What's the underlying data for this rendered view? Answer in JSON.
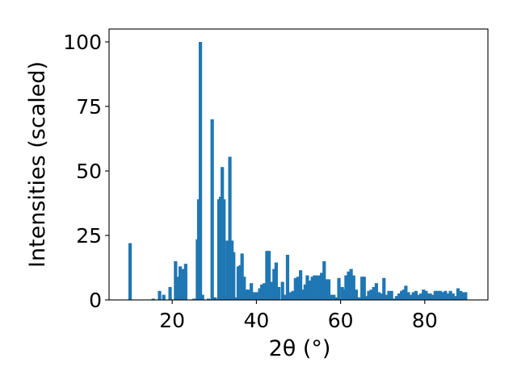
{
  "chart_data": {
    "type": "bar",
    "title": "",
    "xlabel": "2θ (°)",
    "ylabel": "Intensities (scaled)",
    "xlim": [
      5.0,
      95.0
    ],
    "ylim": [
      0,
      105
    ],
    "x_ticks": [
      20,
      40,
      60,
      80
    ],
    "y_ticks": [
      0,
      25,
      50,
      75,
      100
    ],
    "bar_color": "#1f77b4",
    "grid": false,
    "x": [
      10.0,
      15.5,
      17.0,
      18.0,
      19.5,
      20.8,
      21.3,
      21.9,
      22.5,
      23.2,
      25.2,
      26.0,
      26.3,
      26.7,
      27.2,
      28.6,
      29.5,
      30.2,
      31.1,
      31.5,
      31.9,
      32.3,
      32.7,
      33.1,
      33.7,
      34.2,
      34.6,
      35.2,
      35.7,
      36.2,
      36.6,
      37.1,
      37.6,
      38.1,
      38.8,
      39.3,
      40.0,
      40.8,
      41.3,
      41.9,
      42.5,
      43.0,
      43.6,
      44.2,
      44.7,
      45.3,
      46.2,
      46.9,
      47.4,
      48.1,
      48.7,
      49.3,
      49.9,
      50.5,
      51.0,
      51.6,
      52.1,
      52.7,
      53.3,
      53.8,
      54.3,
      54.9,
      55.5,
      56.1,
      56.6,
      57.2,
      57.8,
      58.4,
      59.0,
      59.6,
      60.4,
      60.9,
      61.3,
      61.9,
      62.5,
      63.1,
      63.7,
      64.5,
      65.1,
      65.6,
      66.2,
      66.7,
      67.3,
      67.9,
      68.5,
      69.1,
      69.7,
      70.3,
      70.9,
      71.5,
      72.1,
      72.7,
      73.3,
      73.9,
      74.5,
      75.0,
      75.5,
      76.1,
      76.7,
      77.3,
      77.9,
      78.5,
      79.1,
      79.7,
      80.3,
      80.8,
      81.3,
      81.9,
      82.5,
      83.1,
      83.7,
      84.3,
      84.9,
      85.5,
      86.1,
      86.7,
      87.3,
      87.9,
      88.5,
      89.1,
      89.7
    ],
    "values": [
      22,
      0.5,
      3.5,
      2,
      5,
      15,
      9,
      13,
      12,
      14,
      0.5,
      23.5,
      39,
      100,
      2,
      0.5,
      70,
      1,
      39,
      40,
      51.5,
      39,
      2,
      23,
      55.5,
      23,
      18.5,
      1,
      13,
      13.5,
      18,
      9,
      4,
      4,
      6.5,
      3,
      3,
      4.5,
      6,
      6.5,
      19,
      19,
      7,
      12,
      14.5,
      5,
      7,
      2,
      17.5,
      3,
      3.5,
      8.5,
      9,
      11.5,
      4,
      6,
      9.5,
      7.5,
      9,
      9.5,
      9.5,
      9.5,
      10.5,
      15,
      8,
      8,
      2,
      2,
      1,
      8.5,
      5,
      4,
      9.5,
      11,
      12,
      9.5,
      4,
      1,
      9,
      9,
      1.5,
      3.5,
      4,
      5,
      6.5,
      3,
      2.5,
      8.5,
      2,
      3.5,
      3.5,
      0.5,
      1.5,
      2.5,
      3.5,
      4,
      5.5,
      3,
      2,
      3,
      3.5,
      2,
      2.5,
      4,
      3.5,
      2.5,
      2.5,
      2,
      3.5,
      3.5,
      3.5,
      3,
      3.5,
      2.5,
      3.5,
      2.5,
      1.5,
      4.5,
      3.5,
      3,
      3
    ]
  }
}
